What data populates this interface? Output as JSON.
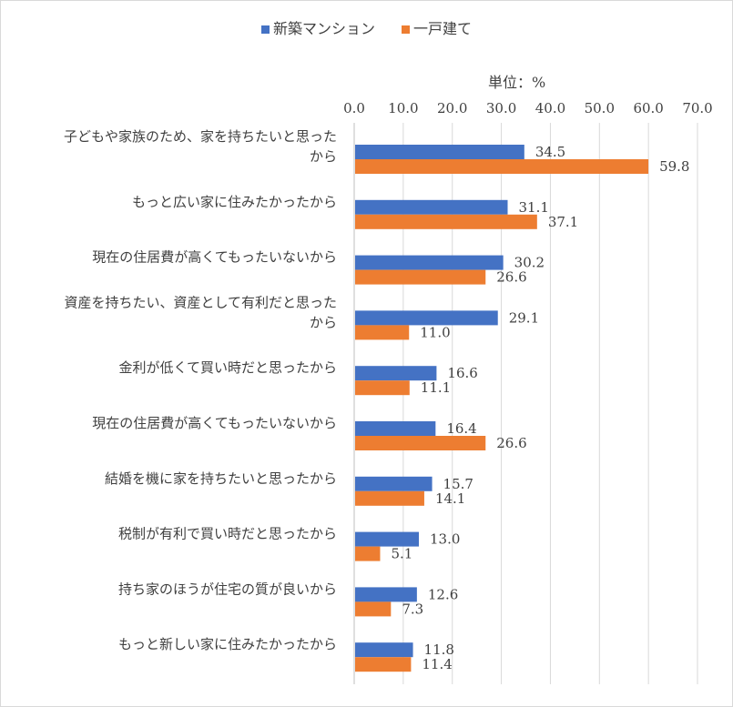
{
  "chart_data": {
    "type": "bar",
    "orientation": "horizontal",
    "unit_label": "単位：%",
    "xlim": [
      0,
      70
    ],
    "xticks": [
      "0.0",
      "10.0",
      "20.0",
      "30.0",
      "40.0",
      "50.0",
      "60.0",
      "70.0"
    ],
    "grid": true,
    "legend_position": "top",
    "categories": [
      [
        "子どもや家族のため、家を持ちたいと思った",
        "から"
      ],
      [
        "もっと広い家に住みたかったから"
      ],
      [
        "現在の住居費が高くてもったいないから"
      ],
      [
        "資産を持ちたい、資産として有利だと思った",
        "から"
      ],
      [
        "金利が低くて買い時だと思ったから"
      ],
      [
        "現在の住居費が高くてもったいないから"
      ],
      [
        "結婚を機に家を持ちたいと思ったから"
      ],
      [
        "税制が有利で買い時だと思ったから"
      ],
      [
        "持ち家のほうが住宅の質が良いから"
      ],
      [
        "もっと新しい家に住みたかったから"
      ]
    ],
    "series": [
      {
        "name": "新築マンション",
        "color": "#4472c4",
        "values": [
          34.5,
          31.1,
          30.2,
          29.1,
          16.6,
          16.4,
          15.7,
          13.0,
          12.6,
          11.8
        ],
        "labels": [
          "34.5",
          "31.1",
          "30.2",
          "29.1",
          "16.6",
          "16.4",
          "15.7",
          "13.0",
          "12.6",
          "11.8"
        ]
      },
      {
        "name": "一戸建て",
        "color": "#ed7d31",
        "values": [
          59.8,
          37.1,
          26.6,
          11.0,
          11.1,
          26.6,
          14.1,
          5.1,
          7.3,
          11.4
        ],
        "labels": [
          "59.8",
          "37.1",
          "26.6",
          "11.0",
          "11.1",
          "26.6",
          "14.1",
          "5.1",
          "7.3",
          "11.4"
        ]
      }
    ]
  }
}
